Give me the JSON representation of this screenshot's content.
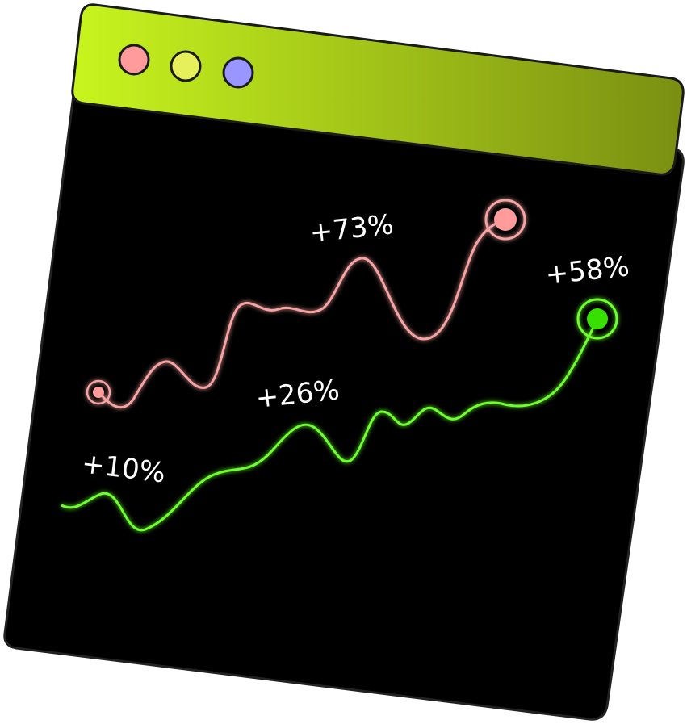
{
  "window": {
    "titlebar_gradient_start": "#c8f51e",
    "titlebar_gradient_end": "#7a8f12",
    "body_color": "#000000",
    "controls": [
      {
        "name": "close",
        "color": "#ff9b9b"
      },
      {
        "name": "minimize",
        "color": "#e6f05a"
      },
      {
        "name": "maximize",
        "color": "#9a96ff"
      }
    ]
  },
  "series": [
    {
      "color": "#f7a3a3",
      "labels": [
        "+73%"
      ]
    },
    {
      "color": "#6dff2e",
      "labels": [
        "+10%",
        "+26%",
        "+58%"
      ]
    }
  ]
}
